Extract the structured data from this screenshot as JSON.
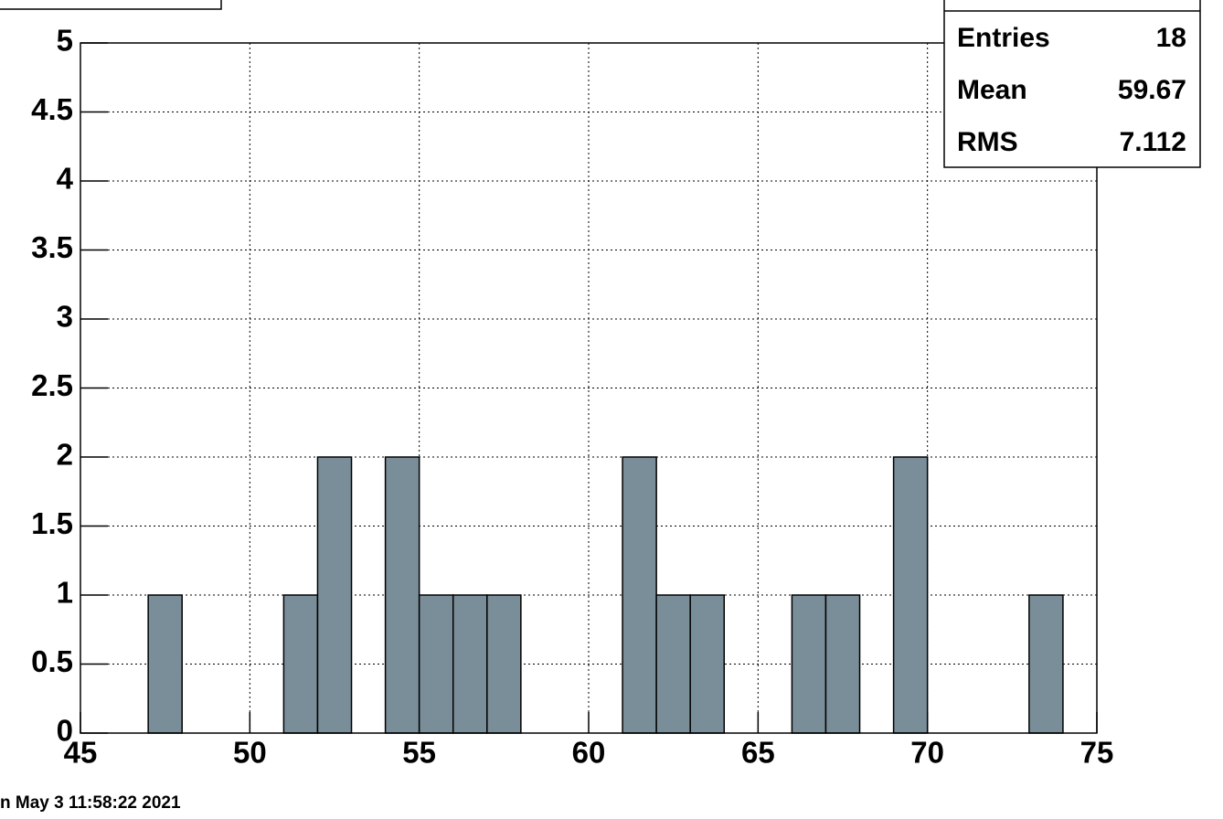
{
  "chart_data": {
    "type": "histogram",
    "bins": [
      45,
      46,
      47,
      48,
      49,
      50,
      51,
      52,
      53,
      54,
      55,
      56,
      57,
      58,
      59,
      60,
      61,
      62,
      63,
      64,
      65,
      66,
      67,
      68,
      69,
      70,
      71,
      72,
      73,
      74,
      75
    ],
    "values": [
      0,
      0,
      1,
      0,
      0,
      0,
      1,
      2,
      0,
      2,
      1,
      1,
      1,
      0,
      0,
      0,
      2,
      1,
      1,
      0,
      0,
      1,
      1,
      0,
      2,
      0,
      0,
      0,
      1,
      0
    ],
    "color": "#7a8e99",
    "xlim": [
      45,
      75
    ],
    "xticks": [
      45,
      50,
      55,
      60,
      65,
      70,
      75
    ],
    "ylim": [
      0,
      5
    ],
    "yticks": [
      0,
      0.5,
      1,
      1.5,
      2,
      2.5,
      3,
      3.5,
      4,
      4.5,
      5
    ],
    "grid": true,
    "stats": {
      "labels": [
        "Entries",
        "Mean",
        "RMS"
      ],
      "values": [
        "18",
        "59.67",
        "7.112"
      ]
    },
    "footer": "n May  3 11:58:22 2021"
  }
}
